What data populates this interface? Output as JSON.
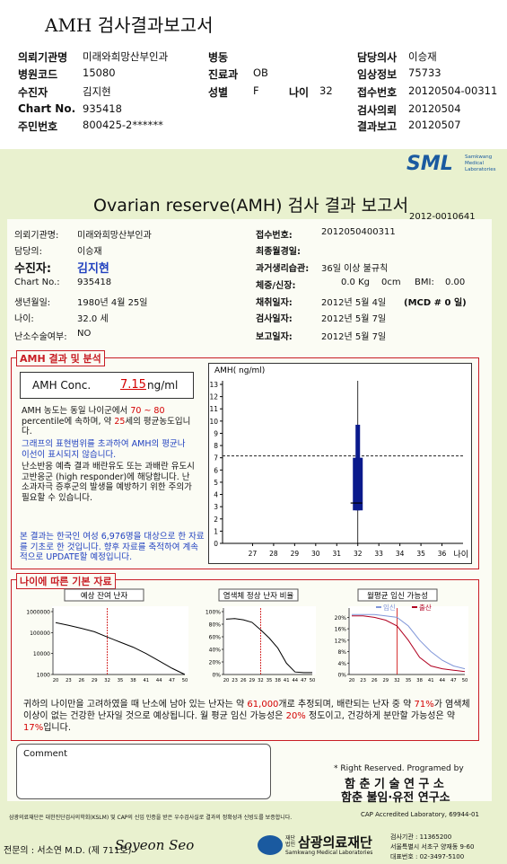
{
  "header": {
    "title": "AMH 검사결과보고서",
    "left": [
      {
        "label": "의뢰기관명",
        "value": "미래와희망산부인과"
      },
      {
        "label": "병원코드",
        "value": "15080"
      },
      {
        "label": "수진자",
        "value": "김지현"
      },
      {
        "label": "Chart No.",
        "value": "935418"
      },
      {
        "label": "주민번호",
        "value": "800425-2******"
      }
    ],
    "middle": [
      {
        "label": "병동"
      },
      {
        "label": "진료과",
        "value": "OB"
      },
      {
        "label": "성별",
        "value": "F"
      },
      {
        "label": "나이",
        "value": "32"
      }
    ],
    "right": [
      {
        "label": "담당의사",
        "value": "이승재"
      },
      {
        "label": "임상정보",
        "value": "75733"
      },
      {
        "label": "접수번호",
        "value": "20120504-00311"
      },
      {
        "label": "검사의뢰",
        "value": "20120504"
      },
      {
        "label": "결과보고",
        "value": "20120507"
      }
    ]
  },
  "report": {
    "logo": "SML",
    "logo_sub": [
      "Samkwang",
      "Medical",
      "Laboratories"
    ],
    "title": "Ovarian reserve(AMH) 검사 결과 보고서",
    "doc_no": "2012-0010641",
    "info_left": [
      {
        "label": "의뢰기관명:",
        "value": "미래와희망산부인과"
      },
      {
        "label": "담당의:",
        "value": "이승재"
      },
      {
        "label": "수진자:",
        "value": "김지현"
      },
      {
        "label": "Chart No.:",
        "value": "935418"
      },
      {
        "label": "생년월일:",
        "value": "1980년 4월 25일"
      },
      {
        "label": "나이:",
        "value": "32.0 세"
      },
      {
        "label": "난소수술여부:",
        "value": "NO"
      }
    ],
    "info_right": [
      {
        "label": "접수번호:",
        "value": "2012050400311"
      },
      {
        "label": "최종월경일:"
      },
      {
        "label": "과거생리습관:",
        "value": "36일 이상 불규칙"
      },
      {
        "label": "체중/신장:",
        "value": "0.0 Kg",
        "value2": "0cm",
        "label2": "BMI:",
        "value3": "0.00"
      },
      {
        "label": "채취일자:",
        "value": "2012년 5월 4일",
        "value2": "(MCD # 0 일)"
      },
      {
        "label": "검사일자:",
        "value": "2012년 5월 7일"
      },
      {
        "label": "보고일자:",
        "value": "2012년 5월 7일"
      }
    ]
  },
  "analysis": {
    "title": "AMH 결과 및 분석",
    "conc_label": "AMH Conc.",
    "conc_value": 7.15,
    "conc_unit": "ng/ml",
    "text1": [
      "AMH 농도는 동일 나이군에서",
      "70 ~ 80",
      "percentile에 속하며, 약",
      "25",
      "세의 평균농도입니다."
    ],
    "text2": "그래프의 표현범위를 초과하여 AMH의 평균나이선이 표시되지 않습니다.",
    "text3": "난소반응 예측 결과 배란유도 또는 과배란 유도시 고반응군 (high responder)에 해당합니다. 난소과자극 증후군의 발생을 예방하기 위한 주의가 필요할 수 있습니다.",
    "text4": "본 결과는 한국인 여성 6,976명을 대상으로 한 자료를 기초로 한 것입니다. 향후 자료를 축적하여 계속적으로 UPDATE할 예정입니다.",
    "chart": {
      "title": "AMH( ng/ml)",
      "xlabel": "나이",
      "xlim": [
        26,
        37
      ],
      "xticks": [
        27,
        28,
        29,
        30,
        31,
        32,
        33,
        34,
        35,
        36
      ],
      "ylim": [
        0,
        13
      ],
      "yticks": [
        0,
        1,
        2,
        3,
        4,
        5,
        6,
        7,
        8,
        9,
        10,
        11,
        12,
        13
      ],
      "age": 32,
      "whisker": [
        2.7,
        9.7
      ],
      "box": [
        2.7,
        7.0
      ],
      "mark": 3.3,
      "color": "#0a1a8c"
    }
  },
  "basic": {
    "title": "나이에 따른 기본 자료",
    "charts": [
      {
        "title": "예상 잔여 난자",
        "log": true,
        "ylim": [
          1000,
          1000000
        ],
        "yticks": [
          1000000,
          100000,
          10000,
          1000
        ],
        "xlim": [
          20,
          50
        ],
        "x": [
          20,
          23,
          26,
          29,
          32,
          35,
          38,
          41,
          44,
          47,
          50
        ],
        "marker": 32,
        "series": [
          {
            "color": "#000000",
            "values": [
              300000,
              220000,
              160000,
              110000,
              61000,
              35000,
              20000,
              10000,
              4500,
              2000,
              1000
            ]
          }
        ]
      },
      {
        "title": "염색체 정상 난자 비율",
        "ylim": [
          0,
          100
        ],
        "yticks": [
          {
            "value": 100,
            "label": "100%"
          },
          {
            "value": 80,
            "label": "80%"
          },
          {
            "value": 60,
            "label": "60%"
          },
          {
            "value": 40,
            "label": "40%"
          },
          {
            "value": 20,
            "label": "20%"
          },
          {
            "value": 0,
            "label": "0%"
          }
        ],
        "xlim": [
          20,
          50
        ],
        "x": [
          20,
          23,
          26,
          29,
          32,
          35,
          38,
          41,
          44,
          47,
          50
        ],
        "marker": 32,
        "series": [
          {
            "color": "#000000",
            "values": [
              88,
              89,
              87,
              83,
              71,
              58,
              42,
              18,
              4,
              3,
              3
            ]
          }
        ]
      },
      {
        "title": "월평균 임신 가능성",
        "ylim": [
          0,
          22
        ],
        "yticks": [
          {
            "value": 20,
            "label": "20%"
          },
          {
            "value": 16,
            "label": "16%"
          },
          {
            "value": 12,
            "label": "12%"
          },
          {
            "value": 8,
            "label": "8%"
          },
          {
            "value": 4,
            "label": "4%"
          },
          {
            "value": 0,
            "label": "0%"
          }
        ],
        "xlim": [
          20,
          50
        ],
        "x": [
          20,
          23,
          26,
          29,
          32,
          35,
          38,
          41,
          44,
          47,
          50
        ],
        "marker": 32,
        "series": [
          {
            "name": "임신",
            "color": "#7f95d8",
            "values": [
              21,
              21,
              21,
              20.5,
              20,
              17,
              12,
              8,
              5,
              3,
              2
            ]
          },
          {
            "name": "출산",
            "color": "#b00020",
            "values": [
              20.5,
              20.5,
              20,
              19,
              17,
              12,
              6,
              3,
              2,
              1.5,
              1
            ]
          }
        ]
      }
    ],
    "summary": [
      {
        "text": "귀하의 나이만을 고려하였을 때 난소에 남아 있는 난자는 약 "
      },
      {
        "text": "61,000",
        "color": "#d40000"
      },
      {
        "text": "개로 추정되며, 배란되는 난자 중 약 "
      },
      {
        "text": "71%",
        "color": "#d40000"
      },
      {
        "text": "가 염색체이상이 없는 건강한 난자일 것으로 예상됩니다. 월 평균 임신 가능성은 "
      },
      {
        "text": "20%",
        "color": "#d40000"
      },
      {
        "text": " 정도이고, 건강하게 분만할 가능성은 약 "
      },
      {
        "text": "17%",
        "color": "#d40000"
      },
      {
        "text": "입니다."
      }
    ]
  },
  "footer": {
    "comment": "Comment",
    "rights": "* Right Reserved. Programed by",
    "lab1": "함 춘 기 술 연 구 소",
    "lab2": "함춘 불임·유전 연구소",
    "note": "삼광의료재단은 대한진단검사의학회(KSLM) 및 CAP의 신임 인증을 받은 우수검사실로 결과의 정확성과 신빙도를 보증합니다.",
    "cap": "CAP Accredited Laboratory, 69944-01",
    "doctor": "전문의 : 서소연 M.D. (제 711호)",
    "signature": "Soyeon Seo",
    "foundation_tag": "재단법인",
    "foundation": "삼광의료재단",
    "foundation_en": "Samkwang Medical Laboratories",
    "org_no": "검사기관 : 11365200",
    "address": "서울특별시 서초구 양재동 9-60",
    "phone": "대표번호 : 02-3497-5100"
  }
}
